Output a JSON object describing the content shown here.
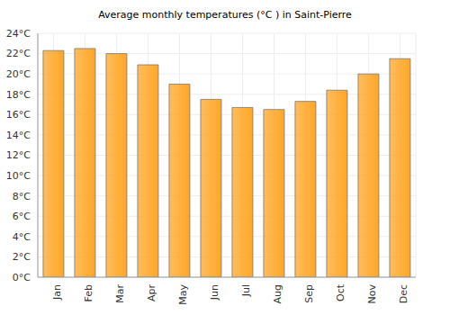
{
  "chart_data": {
    "type": "bar",
    "title": "Average monthly temperatures (°C ) in Saint-Pierre",
    "categories": [
      "Jan",
      "Feb",
      "Mar",
      "Apr",
      "May",
      "Jun",
      "Jul",
      "Aug",
      "Sep",
      "Oct",
      "Nov",
      "Dec"
    ],
    "values": [
      22.3,
      22.5,
      22.0,
      20.9,
      19.0,
      17.5,
      16.7,
      16.5,
      17.3,
      18.4,
      20.0,
      21.5
    ],
    "color": "#ffa726",
    "ylim": [
      0,
      24
    ],
    "yticks": [
      {
        "value": 0,
        "label": "0°C"
      },
      {
        "value": 2,
        "label": "2°C"
      },
      {
        "value": 4,
        "label": "4°C"
      },
      {
        "value": 6,
        "label": "6°C"
      },
      {
        "value": 8,
        "label": "8°C"
      },
      {
        "value": 10,
        "label": "10°C"
      },
      {
        "value": 12,
        "label": "12°C"
      },
      {
        "value": 14,
        "label": "14°C"
      },
      {
        "value": 16,
        "label": "16°C"
      },
      {
        "value": 18,
        "label": "18°C"
      },
      {
        "value": 20,
        "label": "20°C"
      },
      {
        "value": 22,
        "label": "22°C"
      },
      {
        "value": 24,
        "label": "24°C"
      }
    ],
    "grid": true
  }
}
